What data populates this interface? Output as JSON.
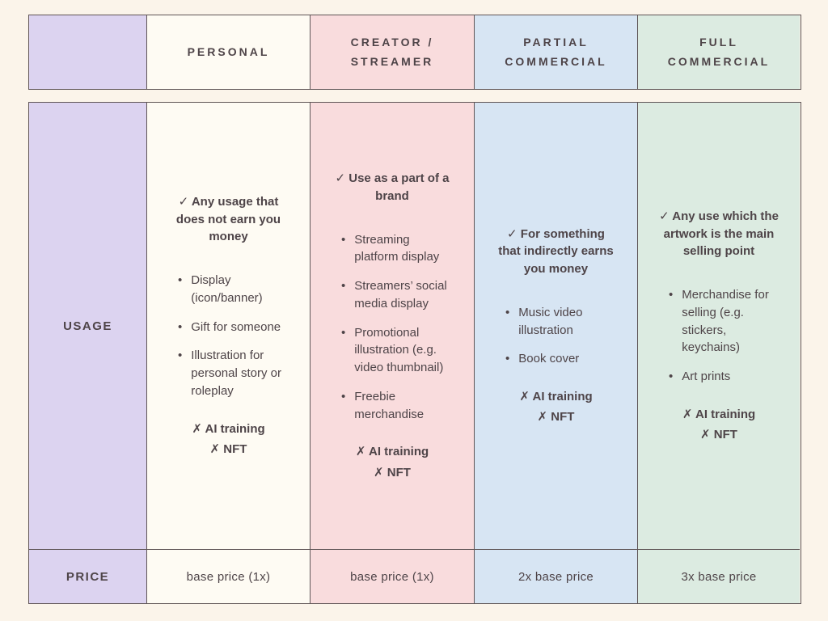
{
  "colors": {
    "page-bg": "#fbf4ea",
    "lavender": "#dcd3f0",
    "cream": "#fefbf3",
    "pink": "#f9dcdd",
    "blue": "#d7e5f3",
    "green": "#dcebe1",
    "border": "#5f5556",
    "text": "#4e4448"
  },
  "header": {
    "columns": [
      "PERSONAL",
      "CREATOR / STREAMER",
      "PARTIAL COMMERCIAL",
      "FULL COMMERCIAL"
    ]
  },
  "rows": {
    "usage_label": "USAGE",
    "price_label": "PRICE"
  },
  "usage": {
    "personal": {
      "allowed": "✓ Any usage that does not earn you money",
      "bullets": [
        "Display (icon/banner)",
        "Gift for someone",
        "Illustration for personal story or roleplay"
      ],
      "restrictions": [
        "✗ AI training",
        "✗ NFT"
      ]
    },
    "creator": {
      "allowed": "✓ Use as a part of a brand",
      "bullets": [
        "Streaming platform display",
        "Streamers’ social media display",
        "Promotional illustration (e.g. video thumbnail)",
        "Freebie merchandise"
      ],
      "restrictions": [
        "✗ AI training",
        "✗ NFT"
      ]
    },
    "partial": {
      "allowed": "✓ For something that indirectly earns you money",
      "bullets": [
        "Music video illustration",
        "Book cover"
      ],
      "restrictions": [
        "✗ AI training",
        "✗ NFT"
      ]
    },
    "full": {
      "allowed": "✓ Any use which the artwork is the main selling point",
      "bullets": [
        "Merchandise for selling (e.g. stickers, keychains)",
        "Art prints"
      ],
      "restrictions": [
        "✗ AI training",
        "✗ NFT"
      ]
    }
  },
  "price": {
    "personal": "base price (1x)",
    "creator": "base price (1x)",
    "partial": "2x base price",
    "full": "3x base price"
  }
}
